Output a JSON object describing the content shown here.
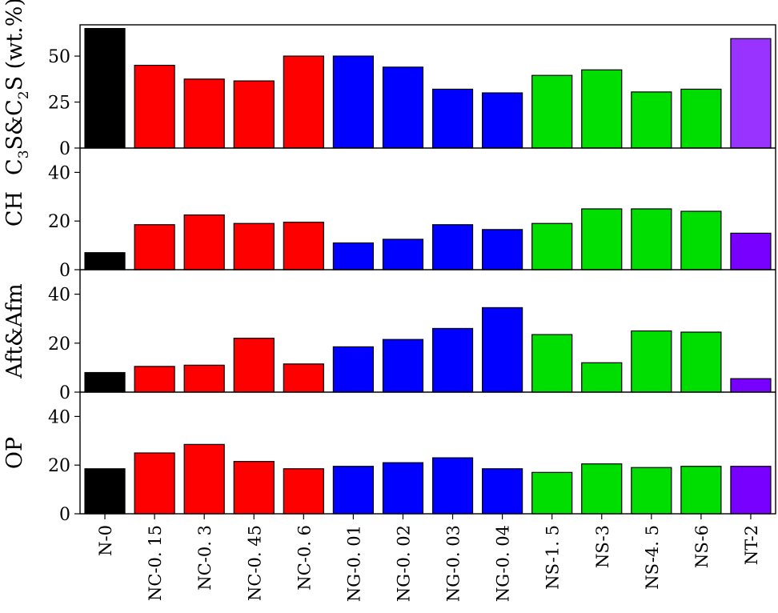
{
  "chart_data": [
    {
      "type": "bar",
      "ylabel_parts": [
        "C",
        "3",
        "S&C",
        "2",
        "S (wt.%)"
      ],
      "ylim": [
        0,
        67
      ],
      "yticks": [
        "0",
        "25",
        "50"
      ],
      "categories": [
        "N-0",
        "NC-0. 15",
        "NC-0. 3",
        "NC-0. 45",
        "NC-0. 6",
        "NG-0. 01",
        "NG-0. 02",
        "NG-0. 03",
        "NG-0. 04",
        "NS-1. 5",
        "NS-3",
        "NS-4. 5",
        "NS-6",
        "NT-2"
      ],
      "values": [
        65,
        45,
        37.5,
        36.5,
        50,
        50,
        44,
        32,
        30,
        39.5,
        42.5,
        30.5,
        32,
        59.5
      ],
      "colors": [
        "#000000",
        "#ff0000",
        "#ff0000",
        "#ff0000",
        "#ff0000",
        "#0000ff",
        "#0000ff",
        "#0000ff",
        "#0000ff",
        "#00dd00",
        "#00dd00",
        "#00dd00",
        "#00dd00",
        "#9933ff"
      ]
    },
    {
      "type": "bar",
      "ylabel": "CH",
      "ylim": [
        0,
        50
      ],
      "yticks": [
        "0",
        "20",
        "40"
      ],
      "categories": [
        "N-0",
        "NC-0. 15",
        "NC-0. 3",
        "NC-0. 45",
        "NC-0. 6",
        "NG-0. 01",
        "NG-0. 02",
        "NG-0. 03",
        "NG-0. 04",
        "NS-1. 5",
        "NS-3",
        "NS-4. 5",
        "NS-6",
        "NT-2"
      ],
      "values": [
        7,
        18.5,
        22.5,
        19,
        19.5,
        11,
        12.5,
        18.5,
        16.5,
        19,
        25,
        25,
        24,
        15
      ],
      "colors": [
        "#000000",
        "#ff0000",
        "#ff0000",
        "#ff0000",
        "#ff0000",
        "#0000ff",
        "#0000ff",
        "#0000ff",
        "#0000ff",
        "#00dd00",
        "#00dd00",
        "#00dd00",
        "#00dd00",
        "#7700ff"
      ]
    },
    {
      "type": "bar",
      "ylabel": "Aft&Afm",
      "ylim": [
        0,
        50
      ],
      "yticks": [
        "0",
        "20",
        "40"
      ],
      "categories": [
        "N-0",
        "NC-0. 15",
        "NC-0. 3",
        "NC-0. 45",
        "NC-0. 6",
        "NG-0. 01",
        "NG-0. 02",
        "NG-0. 03",
        "NG-0. 04",
        "NS-1. 5",
        "NS-3",
        "NS-4. 5",
        "NS-6",
        "NT-2"
      ],
      "values": [
        8,
        10.5,
        11,
        22,
        11.5,
        18.5,
        21.5,
        26,
        34.5,
        23.5,
        12,
        25,
        24.5,
        5.5
      ],
      "colors": [
        "#000000",
        "#ff0000",
        "#ff0000",
        "#ff0000",
        "#ff0000",
        "#0000ff",
        "#0000ff",
        "#0000ff",
        "#0000ff",
        "#00dd00",
        "#00dd00",
        "#00dd00",
        "#00dd00",
        "#7700ff"
      ]
    },
    {
      "type": "bar",
      "ylabel": "OP",
      "ylim": [
        0,
        50
      ],
      "yticks": [
        "0",
        "20",
        "40"
      ],
      "categories": [
        "N-0",
        "NC-0. 15",
        "NC-0. 3",
        "NC-0. 45",
        "NC-0. 6",
        "NG-0. 01",
        "NG-0. 02",
        "NG-0. 03",
        "NG-0. 04",
        "NS-1. 5",
        "NS-3",
        "NS-4. 5",
        "NS-6",
        "NT-2"
      ],
      "values": [
        18.5,
        25,
        28.5,
        21.5,
        18.5,
        19.5,
        21,
        23,
        18.5,
        17,
        20.5,
        19,
        19.5,
        19.5
      ],
      "colors": [
        "#000000",
        "#ff0000",
        "#ff0000",
        "#ff0000",
        "#ff0000",
        "#0000ff",
        "#0000ff",
        "#0000ff",
        "#0000ff",
        "#00dd00",
        "#00dd00",
        "#00dd00",
        "#00dd00",
        "#7700ff"
      ]
    }
  ]
}
